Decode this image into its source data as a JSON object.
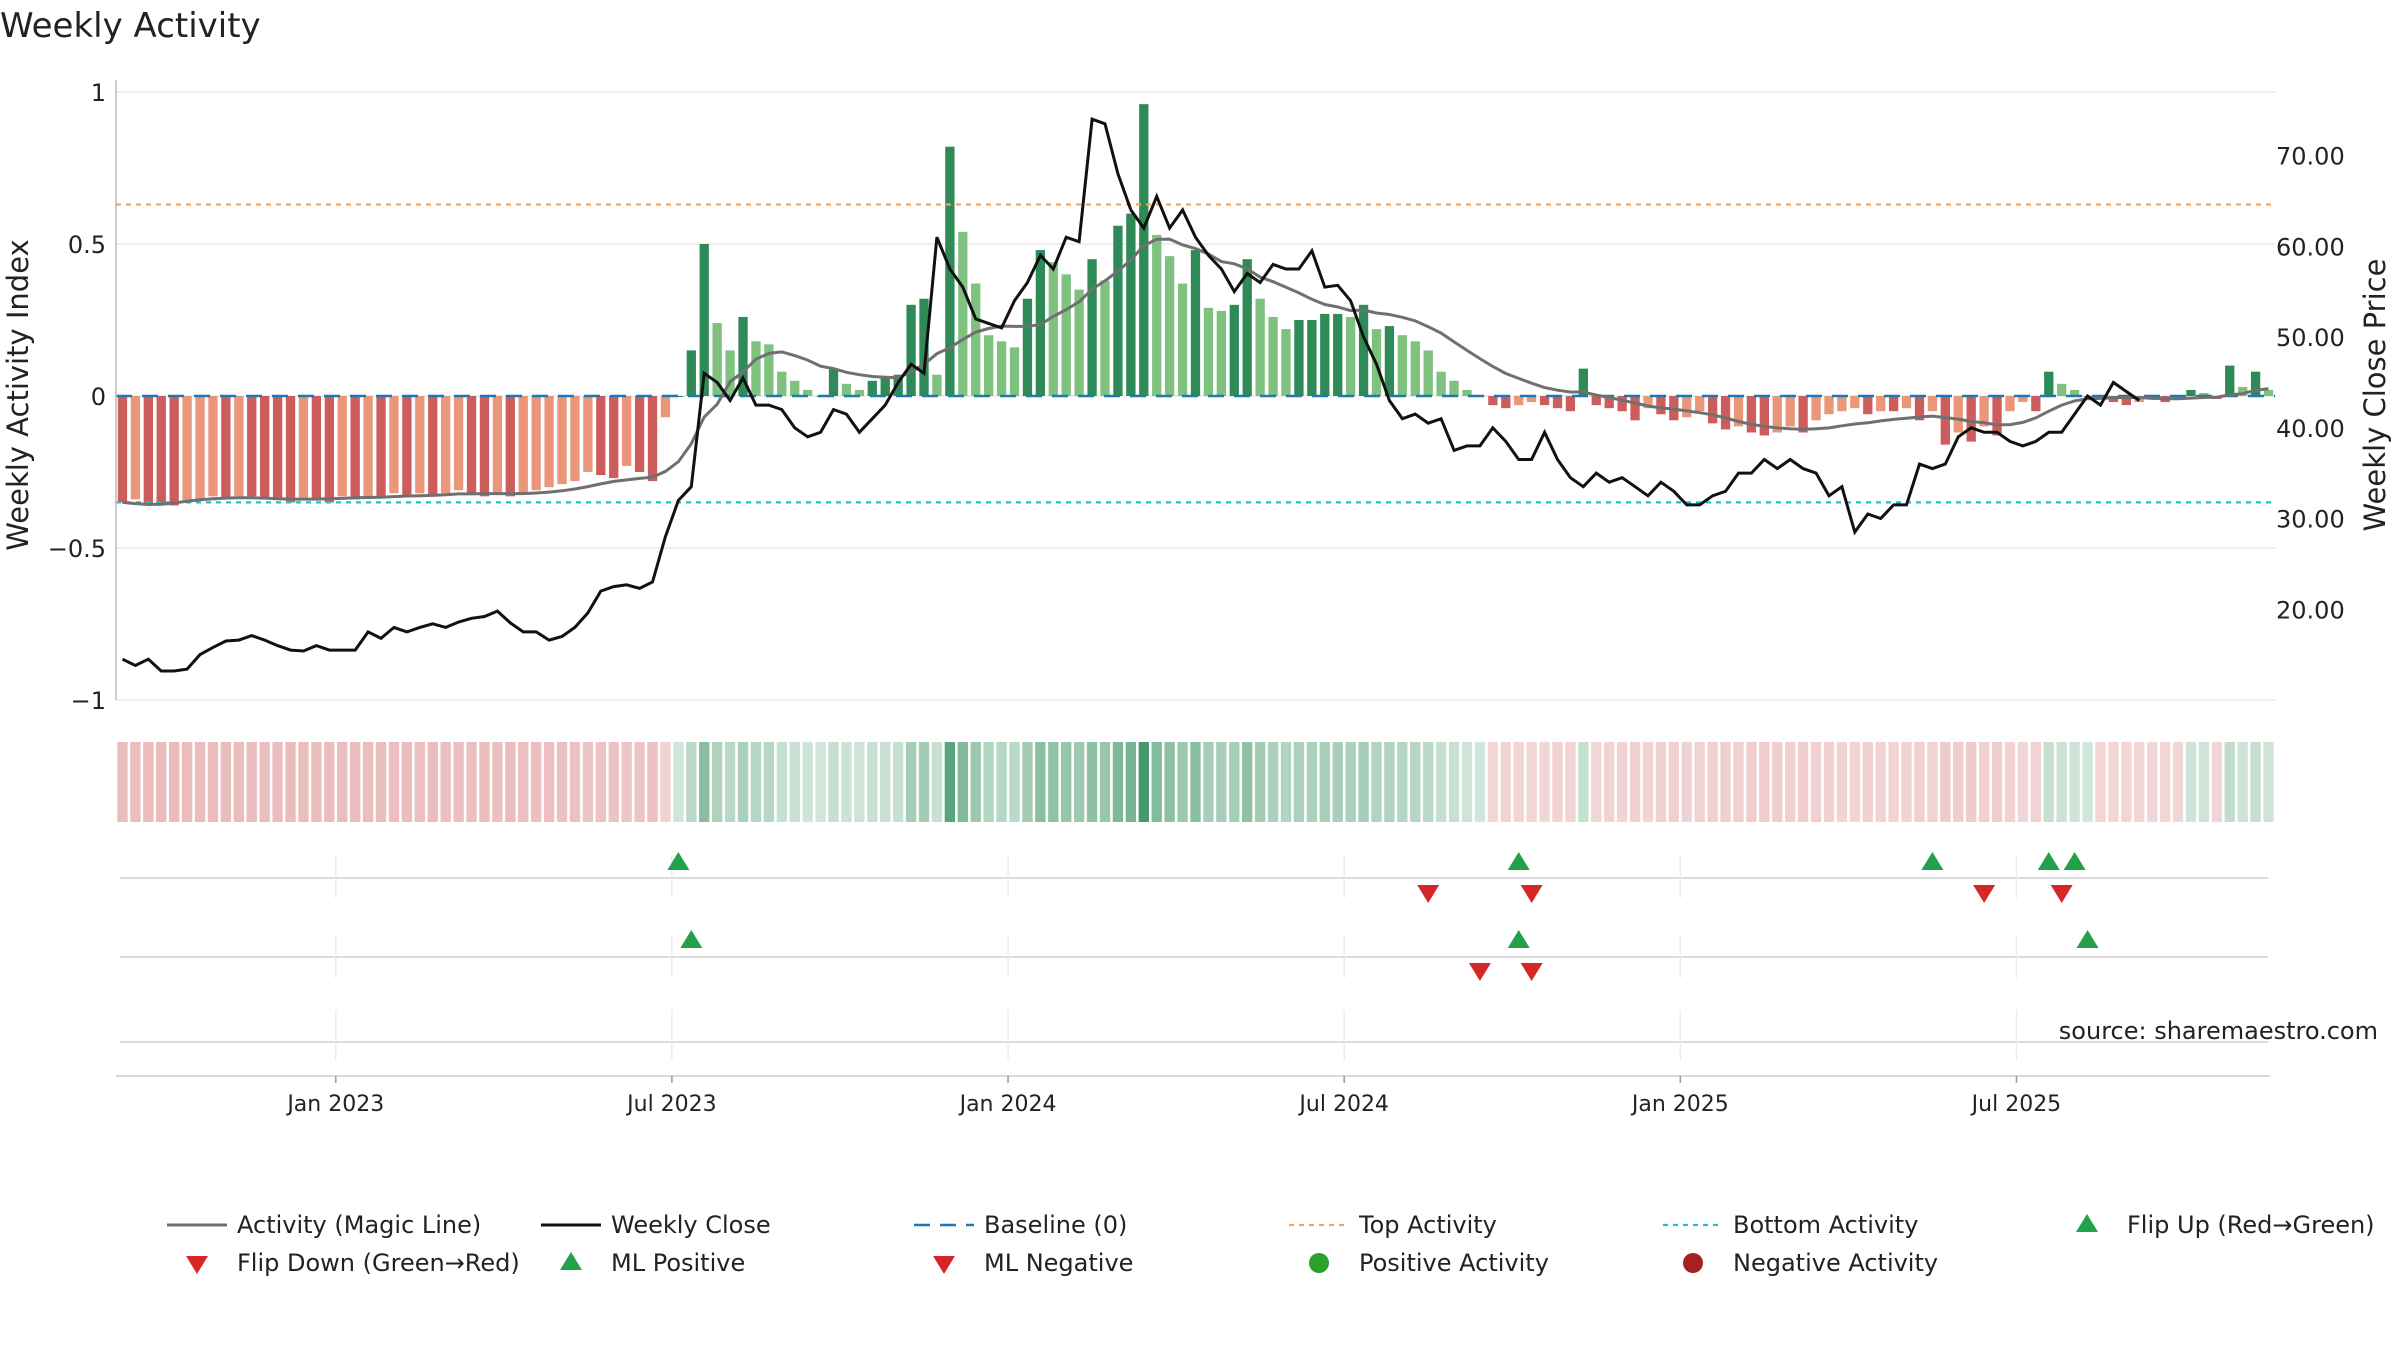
{
  "chart_data": {
    "type": "bar",
    "title": "Weekly Activity",
    "ylabel": "Weekly Activity Index",
    "y2label": "Weekly Close Price",
    "ylim": [
      -1,
      1
    ],
    "y2lim": [
      10,
      77
    ],
    "yticks": [
      "1",
      "0.5",
      "0",
      "−0.5",
      "−1"
    ],
    "ytick_values": [
      1,
      0.5,
      0,
      -0.5,
      -1
    ],
    "y2ticks": [
      "70.00",
      "60.00",
      "50.00",
      "40.00",
      "30.00",
      "20.00"
    ],
    "y2tick_values": [
      70,
      60,
      50,
      40,
      30,
      20
    ],
    "xticks": [
      "Jan 2023",
      "Jul 2023",
      "Jan 2024",
      "Jul 2024",
      "Jan 2025",
      "Jul 2025"
    ],
    "xtick_weeks": [
      17,
      43,
      69,
      95,
      121,
      147
    ],
    "start_week": "2022-09-05",
    "top_activity": 0.63,
    "bottom_activity": -0.35,
    "source": "source: sharemaestro.com",
    "activity": [
      -0.35,
      -0.34,
      -0.36,
      -0.36,
      -0.36,
      -0.35,
      -0.34,
      -0.33,
      -0.34,
      -0.33,
      -0.33,
      -0.34,
      -0.34,
      -0.35,
      -0.34,
      -0.34,
      -0.35,
      -0.33,
      -0.34,
      -0.33,
      -0.33,
      -0.32,
      -0.33,
      -0.32,
      -0.33,
      -0.32,
      -0.31,
      -0.32,
      -0.33,
      -0.32,
      -0.33,
      -0.32,
      -0.31,
      -0.3,
      -0.29,
      -0.28,
      -0.25,
      -0.26,
      -0.27,
      -0.23,
      -0.25,
      -0.28,
      -0.07,
      0.0,
      0.15,
      0.5,
      0.24,
      0.15,
      0.26,
      0.18,
      0.17,
      0.08,
      0.05,
      0.02,
      0.0,
      0.09,
      0.04,
      0.02,
      0.05,
      0.06,
      0.07,
      0.3,
      0.32,
      0.07,
      0.82,
      0.54,
      0.37,
      0.2,
      0.18,
      0.16,
      0.32,
      0.48,
      0.44,
      0.4,
      0.35,
      0.45,
      0.38,
      0.56,
      0.6,
      0.96,
      0.53,
      0.46,
      0.37,
      0.48,
      0.29,
      0.28,
      0.3,
      0.45,
      0.32,
      0.26,
      0.22,
      0.25,
      0.25,
      0.27,
      0.27,
      0.26,
      0.3,
      0.22,
      0.23,
      0.2,
      0.18,
      0.15,
      0.08,
      0.05,
      0.02,
      0.0,
      -0.03,
      -0.04,
      -0.03,
      -0.02,
      -0.03,
      -0.04,
      -0.05,
      0.09,
      -0.03,
      -0.04,
      -0.05,
      -0.08,
      -0.04,
      -0.06,
      -0.08,
      -0.07,
      -0.05,
      -0.09,
      -0.11,
      -0.1,
      -0.12,
      -0.13,
      -0.12,
      -0.1,
      -0.12,
      -0.08,
      -0.06,
      -0.05,
      -0.04,
      -0.06,
      -0.05,
      -0.05,
      -0.04,
      -0.08,
      -0.05,
      -0.16,
      -0.12,
      -0.15,
      -0.1,
      -0.13,
      -0.05,
      -0.02,
      -0.05,
      0.08,
      0.04,
      0.02,
      0.0,
      -0.01,
      -0.02,
      -0.03,
      -0.02,
      -0.01,
      -0.02,
      -0.01,
      0.02,
      0.01,
      -0.01,
      0.1,
      0.03,
      0.08,
      0.02
    ],
    "magic_line": [
      -0.35,
      -0.354,
      -0.357,
      -0.356,
      -0.352,
      -0.346,
      -0.341,
      -0.338,
      -0.336,
      -0.335,
      -0.335,
      -0.336,
      -0.338,
      -0.339,
      -0.339,
      -0.339,
      -0.338,
      -0.337,
      -0.335,
      -0.334,
      -0.333,
      -0.331,
      -0.329,
      -0.328,
      -0.327,
      -0.325,
      -0.322,
      -0.322,
      -0.321,
      -0.321,
      -0.321,
      -0.321,
      -0.319,
      -0.316,
      -0.312,
      -0.306,
      -0.298,
      -0.289,
      -0.281,
      -0.276,
      -0.271,
      -0.267,
      -0.248,
      -0.216,
      -0.157,
      -0.069,
      -0.027,
      0.047,
      0.079,
      0.121,
      0.14,
      0.145,
      0.133,
      0.118,
      0.098,
      0.09,
      0.078,
      0.07,
      0.064,
      0.062,
      0.06,
      0.08,
      0.104,
      0.139,
      0.159,
      0.186,
      0.21,
      0.222,
      0.23,
      0.229,
      0.229,
      0.235,
      0.262,
      0.284,
      0.31,
      0.351,
      0.379,
      0.411,
      0.447,
      0.495,
      0.515,
      0.516,
      0.497,
      0.485,
      0.467,
      0.442,
      0.435,
      0.418,
      0.391,
      0.376,
      0.358,
      0.339,
      0.318,
      0.301,
      0.293,
      0.281,
      0.283,
      0.273,
      0.268,
      0.259,
      0.247,
      0.228,
      0.207,
      0.178,
      0.15,
      0.123,
      0.097,
      0.074,
      0.058,
      0.042,
      0.028,
      0.019,
      0.013,
      0.013,
      0.003,
      -0.005,
      -0.014,
      -0.023,
      -0.033,
      -0.039,
      -0.043,
      -0.049,
      -0.055,
      -0.062,
      -0.072,
      -0.084,
      -0.093,
      -0.1,
      -0.105,
      -0.108,
      -0.11,
      -0.108,
      -0.105,
      -0.098,
      -0.092,
      -0.088,
      -0.082,
      -0.077,
      -0.073,
      -0.069,
      -0.066,
      -0.071,
      -0.076,
      -0.084,
      -0.088,
      -0.095,
      -0.094,
      -0.087,
      -0.072,
      -0.05,
      -0.03,
      -0.016,
      -0.009,
      -0.008,
      -0.006,
      -0.005,
      -0.005,
      -0.008,
      -0.009,
      -0.009,
      -0.007,
      -0.005,
      -0.004,
      0.004,
      0.008,
      0.019,
      0.024
    ],
    "weekly_close": [
      14.5,
      13.8,
      14.5,
      13.2,
      13.2,
      13.4,
      15.0,
      15.8,
      16.5,
      16.6,
      17.1,
      16.6,
      16.0,
      15.5,
      15.4,
      16.0,
      15.5,
      15.5,
      15.5,
      17.5,
      16.8,
      18.0,
      17.5,
      18.0,
      18.4,
      18.0,
      18.6,
      19.0,
      19.2,
      19.8,
      18.5,
      17.5,
      17.5,
      16.6,
      17.0,
      18.0,
      19.6,
      22.0,
      22.5,
      22.7,
      22.3,
      23.0,
      28.0,
      32.0,
      33.5,
      46.0,
      45.0,
      43.0,
      45.5,
      42.5,
      42.5,
      42.0,
      40.0,
      39.0,
      39.5,
      42.0,
      41.5,
      39.5,
      41.0,
      42.5,
      45.0,
      47.0,
      46.0,
      61.0,
      57.5,
      55.5,
      52.0,
      51.5,
      51.0,
      54.0,
      56.0,
      59.0,
      57.5,
      61.0,
      60.5,
      74.0,
      73.5,
      68.0,
      64.0,
      62.0,
      65.5,
      62.0,
      64.0,
      61.0,
      59.0,
      57.5,
      55.0,
      57.0,
      56.0,
      58.0,
      57.5,
      57.5,
      59.5,
      55.5,
      55.7,
      54.0,
      50.0,
      47.0,
      43.0,
      41.0,
      41.5,
      40.5,
      41.0,
      37.5,
      38.0,
      38.0,
      40.0,
      38.5,
      36.5,
      36.5,
      39.5,
      36.5,
      34.5,
      33.5,
      35.0,
      34.0,
      34.5,
      33.5,
      32.5,
      34.0,
      33.0,
      31.5,
      31.5,
      32.5,
      33.0,
      35.0,
      35.0,
      36.5,
      35.5,
      36.5,
      35.5,
      35.0,
      32.5,
      33.5,
      28.5,
      30.5,
      30.0,
      31.5,
      31.5,
      36.0,
      35.5,
      36.0,
      39.0,
      40.0,
      39.5,
      39.5,
      38.5,
      38.0,
      38.5,
      39.5,
      39.5,
      41.5,
      43.5,
      42.5,
      45.0,
      44.0,
      43.0
    ],
    "flip_up": [
      43,
      108,
      140,
      149,
      151
    ],
    "flip_down": [
      101,
      109,
      144,
      150
    ],
    "ml_positive": [
      44,
      108,
      152
    ],
    "ml_negative": [
      105,
      109
    ],
    "legend": [
      "Activity (Magic Line)",
      "Weekly Close",
      "Baseline (0)",
      "Top Activity",
      "Bottom Activity",
      "Flip Up (Red→Green)",
      "Flip Down (Green→Red)",
      "ML Positive",
      "ML Negative",
      "Positive Activity",
      "Negative Activity"
    ],
    "colors": {
      "pos_strong": "#2e8b57",
      "pos_light": "#7fc27f",
      "neg_strong": "#cd5c5c",
      "neg_light": "#e9967a",
      "magic_line": "#707070",
      "close": "#111111",
      "baseline": "#1f77b4",
      "top": "#f4a460",
      "bottom": "#20c0c8",
      "flip_up": "#22a04a",
      "flip_down": "#d62728",
      "positive_dot": "#2ca02c",
      "negative_dot": "#a52020"
    }
  }
}
